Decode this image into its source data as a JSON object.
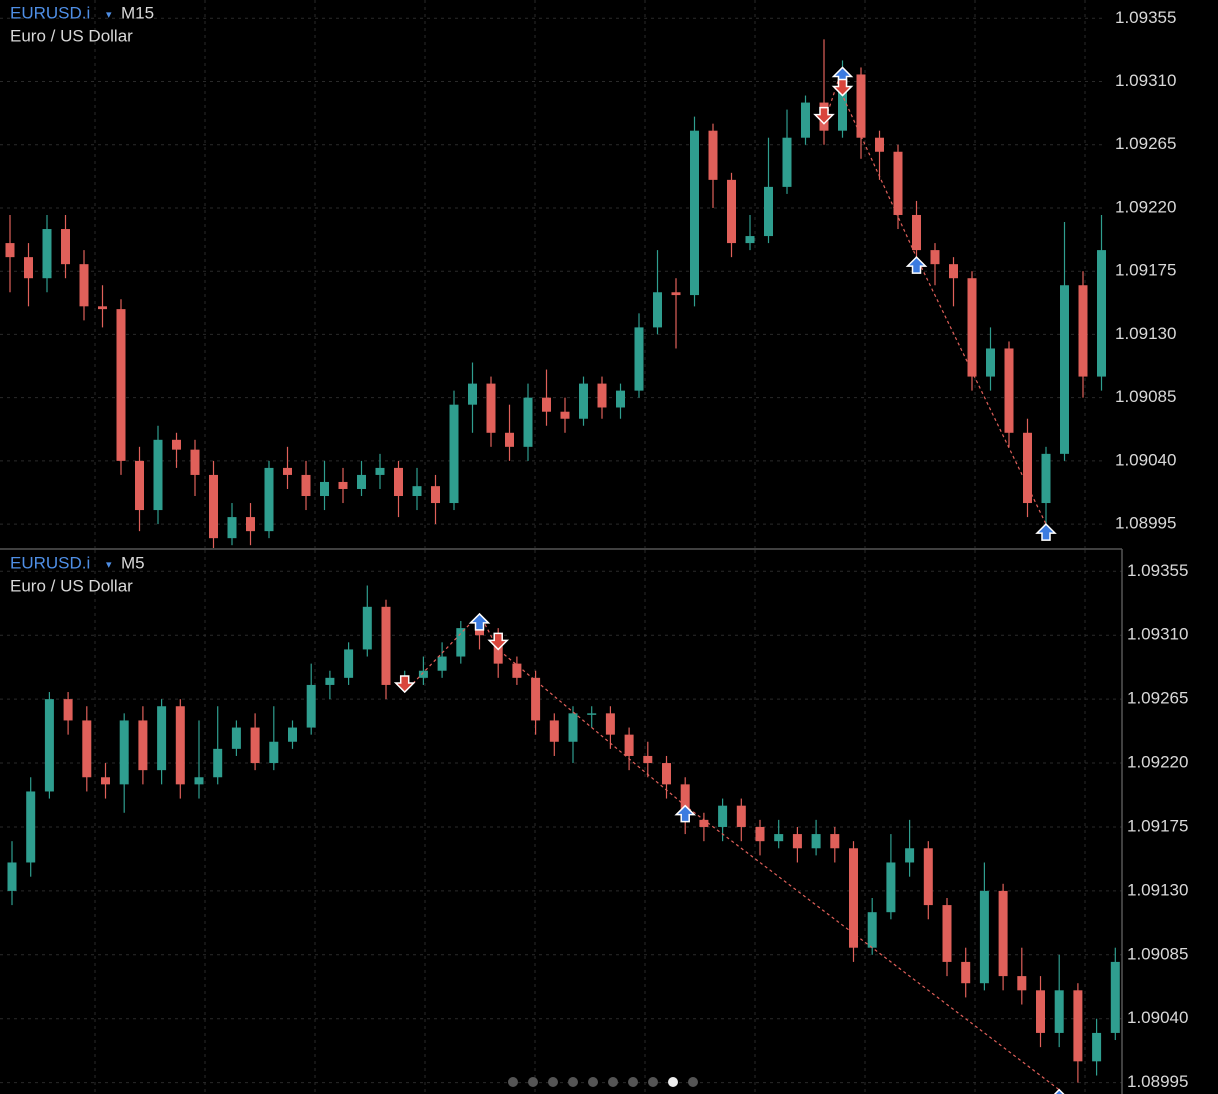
{
  "chart_data": [
    {
      "type": "candlestick",
      "symbol": "EURUSD.i",
      "timeframe": "M15",
      "description": "Euro / US Dollar",
      "up_color": "#2f9e8f",
      "down_color": "#e0605a",
      "grid": true,
      "ylim": [
        1.08978,
        1.09368
      ],
      "yticks": [
        1.09355,
        {
          "value": 1.0931,
          "label": "1.09310"
        },
        1.09265,
        {
          "value": 1.0922,
          "label": "1.09220"
        },
        1.09175,
        {
          "value": 1.0913,
          "label": "1.09130"
        },
        1.09085,
        {
          "value": 1.0904,
          "label": "1.09040"
        },
        1.08995
      ],
      "open": [
        1.09195,
        1.09185,
        1.0917,
        1.09205,
        1.0918,
        1.0915,
        1.09148,
        1.0904,
        1.09005,
        1.09055,
        1.09048,
        1.0903,
        1.08985,
        1.09,
        1.0899,
        1.09035,
        1.0903,
        1.09015,
        1.09025,
        1.0902,
        1.0903,
        1.09035,
        1.09015,
        1.09022,
        1.0901,
        1.0908,
        1.09095,
        1.0906,
        1.0905,
        1.09085,
        1.09075,
        1.0907,
        1.09095,
        1.09078,
        1.0909,
        1.09135,
        1.0916,
        1.09158,
        1.09275,
        1.0924,
        1.09195,
        1.092,
        1.09235,
        1.0927,
        1.09295,
        1.09275,
        1.09315,
        1.0927,
        1.0926,
        1.09215,
        1.0919,
        1.0918,
        1.0917,
        1.091,
        1.0912,
        1.0906,
        1.0901,
        1.09045,
        1.09165,
        1.091
      ],
      "high": [
        1.09215,
        1.09195,
        1.09215,
        1.09215,
        1.0919,
        1.09165,
        1.09155,
        1.0905,
        1.09065,
        1.0906,
        1.09055,
        1.0904,
        1.0901,
        1.0901,
        1.0904,
        1.0905,
        1.0904,
        1.0904,
        1.09035,
        1.0904,
        1.09045,
        1.0904,
        1.09035,
        1.0903,
        1.0909,
        1.0911,
        1.091,
        1.0908,
        1.09095,
        1.09105,
        1.09085,
        1.091,
        1.091,
        1.09095,
        1.09145,
        1.0919,
        1.0917,
        1.09285,
        1.0928,
        1.09245,
        1.09215,
        1.0927,
        1.0929,
        1.093,
        1.0934,
        1.09325,
        1.0932,
        1.09275,
        1.09265,
        1.09225,
        1.09195,
        1.09185,
        1.09175,
        1.09135,
        1.09125,
        1.0907,
        1.0905,
        1.0921,
        1.09175,
        1.09215
      ],
      "low": [
        1.0916,
        1.0915,
        1.0916,
        1.0917,
        1.0914,
        1.09135,
        1.0903,
        1.0899,
        1.08995,
        1.09035,
        1.09015,
        1.08978,
        1.0898,
        1.0898,
        1.08985,
        1.0902,
        1.09005,
        1.09005,
        1.0901,
        1.09015,
        1.0902,
        1.09,
        1.09005,
        1.08995,
        1.09005,
        1.0906,
        1.0905,
        1.0904,
        1.0904,
        1.09065,
        1.0906,
        1.09065,
        1.0907,
        1.0907,
        1.09085,
        1.0913,
        1.0912,
        1.0915,
        1.0922,
        1.09185,
        1.0919,
        1.09195,
        1.0923,
        1.09265,
        1.09265,
        1.0927,
        1.09255,
        1.0924,
        1.09205,
        1.09175,
        1.09165,
        1.0915,
        1.0909,
        1.0909,
        1.0905,
        1.09,
        1.08985,
        1.0904,
        1.09085,
        1.0909
      ],
      "close": [
        1.09185,
        1.0917,
        1.09205,
        1.0918,
        1.0915,
        1.09148,
        1.0904,
        1.09005,
        1.09055,
        1.09048,
        1.0903,
        1.08985,
        1.09,
        1.0899,
        1.09035,
        1.0903,
        1.09015,
        1.09025,
        1.0902,
        1.0903,
        1.09035,
        1.09015,
        1.09022,
        1.0901,
        1.0908,
        1.09095,
        1.0906,
        1.0905,
        1.09085,
        1.09075,
        1.0907,
        1.09095,
        1.09078,
        1.0909,
        1.09135,
        1.0916,
        1.09158,
        1.09275,
        1.0924,
        1.09195,
        1.092,
        1.09235,
        1.0927,
        1.09295,
        1.09275,
        1.09315,
        1.0927,
        1.0926,
        1.09215,
        1.0919,
        1.0918,
        1.0917,
        1.091,
        1.0912,
        1.0906,
        1.0901,
        1.09045,
        1.09165,
        1.091,
        1.0919
      ],
      "signals": [
        {
          "index": 44,
          "side": "sell",
          "price": 1.0928
        },
        {
          "index": 45,
          "side": "buy",
          "price": 1.0932
        },
        {
          "index": 45,
          "side": "sell",
          "price": 1.093
        },
        {
          "index": 49,
          "side": "buy",
          "price": 1.09185
        },
        {
          "index": 56,
          "side": "buy",
          "price": 1.08995
        }
      ]
    },
    {
      "type": "candlestick",
      "symbol": "EURUSD.i",
      "timeframe": "M5",
      "description": "Euro / US Dollar",
      "up_color": "#2f9e8f",
      "down_color": "#e0605a",
      "grid": true,
      "ylim": [
        1.08987,
        1.0937
      ],
      "yticks": [
        1.09355,
        {
          "value": 1.0931,
          "label": "1.09310"
        },
        1.09265,
        {
          "value": 1.0922,
          "label": "1.09220"
        },
        1.09175,
        {
          "value": 1.0913,
          "label": "1.09130"
        },
        1.09085,
        {
          "value": 1.0904,
          "label": "1.09040"
        },
        1.08995
      ],
      "open": [
        1.0913,
        1.0915,
        1.092,
        1.09265,
        1.0925,
        1.0921,
        1.09205,
        1.0925,
        1.09215,
        1.0926,
        1.09205,
        1.0921,
        1.0923,
        1.09245,
        1.0922,
        1.09235,
        1.09245,
        1.09275,
        1.0928,
        1.093,
        1.0933,
        1.09275,
        1.0928,
        1.09285,
        1.09295,
        1.09315,
        1.0931,
        1.0929,
        1.0928,
        1.0925,
        1.09235,
        1.09255,
        1.09255,
        1.0924,
        1.09225,
        1.0922,
        1.09205,
        1.0918,
        1.09175,
        1.0919,
        1.09175,
        1.09165,
        1.0917,
        1.0916,
        1.0917,
        1.0916,
        1.0909,
        1.09115,
        1.0915,
        1.0916,
        1.0912,
        1.0908,
        1.09065,
        1.0913,
        1.0907,
        1.0906,
        1.0903,
        1.0906,
        1.0901,
        1.0903
      ],
      "high": [
        1.09165,
        1.0921,
        1.0927,
        1.0927,
        1.0926,
        1.0922,
        1.09255,
        1.0926,
        1.09265,
        1.09265,
        1.0925,
        1.0926,
        1.0925,
        1.09255,
        1.0926,
        1.0925,
        1.0929,
        1.09285,
        1.09305,
        1.09345,
        1.09335,
        1.09285,
        1.09295,
        1.09305,
        1.0932,
        1.09325,
        1.09315,
        1.09295,
        1.09285,
        1.09255,
        1.0926,
        1.0926,
        1.0926,
        1.09245,
        1.09235,
        1.09225,
        1.0921,
        1.09185,
        1.09195,
        1.09195,
        1.0918,
        1.0918,
        1.09175,
        1.0918,
        1.09175,
        1.09165,
        1.09125,
        1.0917,
        1.0918,
        1.09165,
        1.09125,
        1.0909,
        1.0915,
        1.09135,
        1.0909,
        1.0907,
        1.09085,
        1.09065,
        1.0904,
        1.0909
      ],
      "low": [
        1.0912,
        1.0914,
        1.09195,
        1.0924,
        1.092,
        1.09195,
        1.09185,
        1.09205,
        1.09205,
        1.09195,
        1.09195,
        1.09205,
        1.09225,
        1.09215,
        1.09215,
        1.0923,
        1.0924,
        1.09265,
        1.09275,
        1.09295,
        1.09265,
        1.0927,
        1.09275,
        1.0928,
        1.0929,
        1.093,
        1.0928,
        1.09275,
        1.0924,
        1.09225,
        1.0922,
        1.09245,
        1.0923,
        1.09215,
        1.0921,
        1.09195,
        1.0917,
        1.09165,
        1.09165,
        1.09165,
        1.09155,
        1.0916,
        1.0915,
        1.09155,
        1.0915,
        1.0908,
        1.09085,
        1.0911,
        1.0914,
        1.0911,
        1.0907,
        1.09055,
        1.0906,
        1.0906,
        1.0905,
        1.0902,
        1.0902,
        1.08995,
        1.09,
        1.09025
      ],
      "close": [
        1.0915,
        1.092,
        1.09265,
        1.0925,
        1.0921,
        1.09205,
        1.0925,
        1.09215,
        1.0926,
        1.09205,
        1.0921,
        1.0923,
        1.09245,
        1.0922,
        1.09235,
        1.09245,
        1.09275,
        1.0928,
        1.093,
        1.0933,
        1.09275,
        1.0928,
        1.09285,
        1.09295,
        1.09315,
        1.0931,
        1.0929,
        1.0928,
        1.0925,
        1.09235,
        1.09255,
        1.09255,
        1.0924,
        1.09225,
        1.0922,
        1.09205,
        1.0918,
        1.09175,
        1.0919,
        1.09175,
        1.09165,
        1.0917,
        1.0916,
        1.0917,
        1.0916,
        1.0909,
        1.09115,
        1.0915,
        1.0916,
        1.0912,
        1.0908,
        1.09065,
        1.0913,
        1.0907,
        1.0906,
        1.0903,
        1.0906,
        1.0901,
        1.0903,
        1.0908
      ],
      "signals": [
        {
          "index": 21,
          "side": "sell",
          "price": 1.0927
        },
        {
          "index": 25,
          "side": "buy",
          "price": 1.09325
        },
        {
          "index": 26,
          "side": "sell",
          "price": 1.093
        },
        {
          "index": 36,
          "side": "buy",
          "price": 1.0919
        },
        {
          "index": 56,
          "side": "buy",
          "price": 1.0899
        }
      ]
    }
  ]
}
